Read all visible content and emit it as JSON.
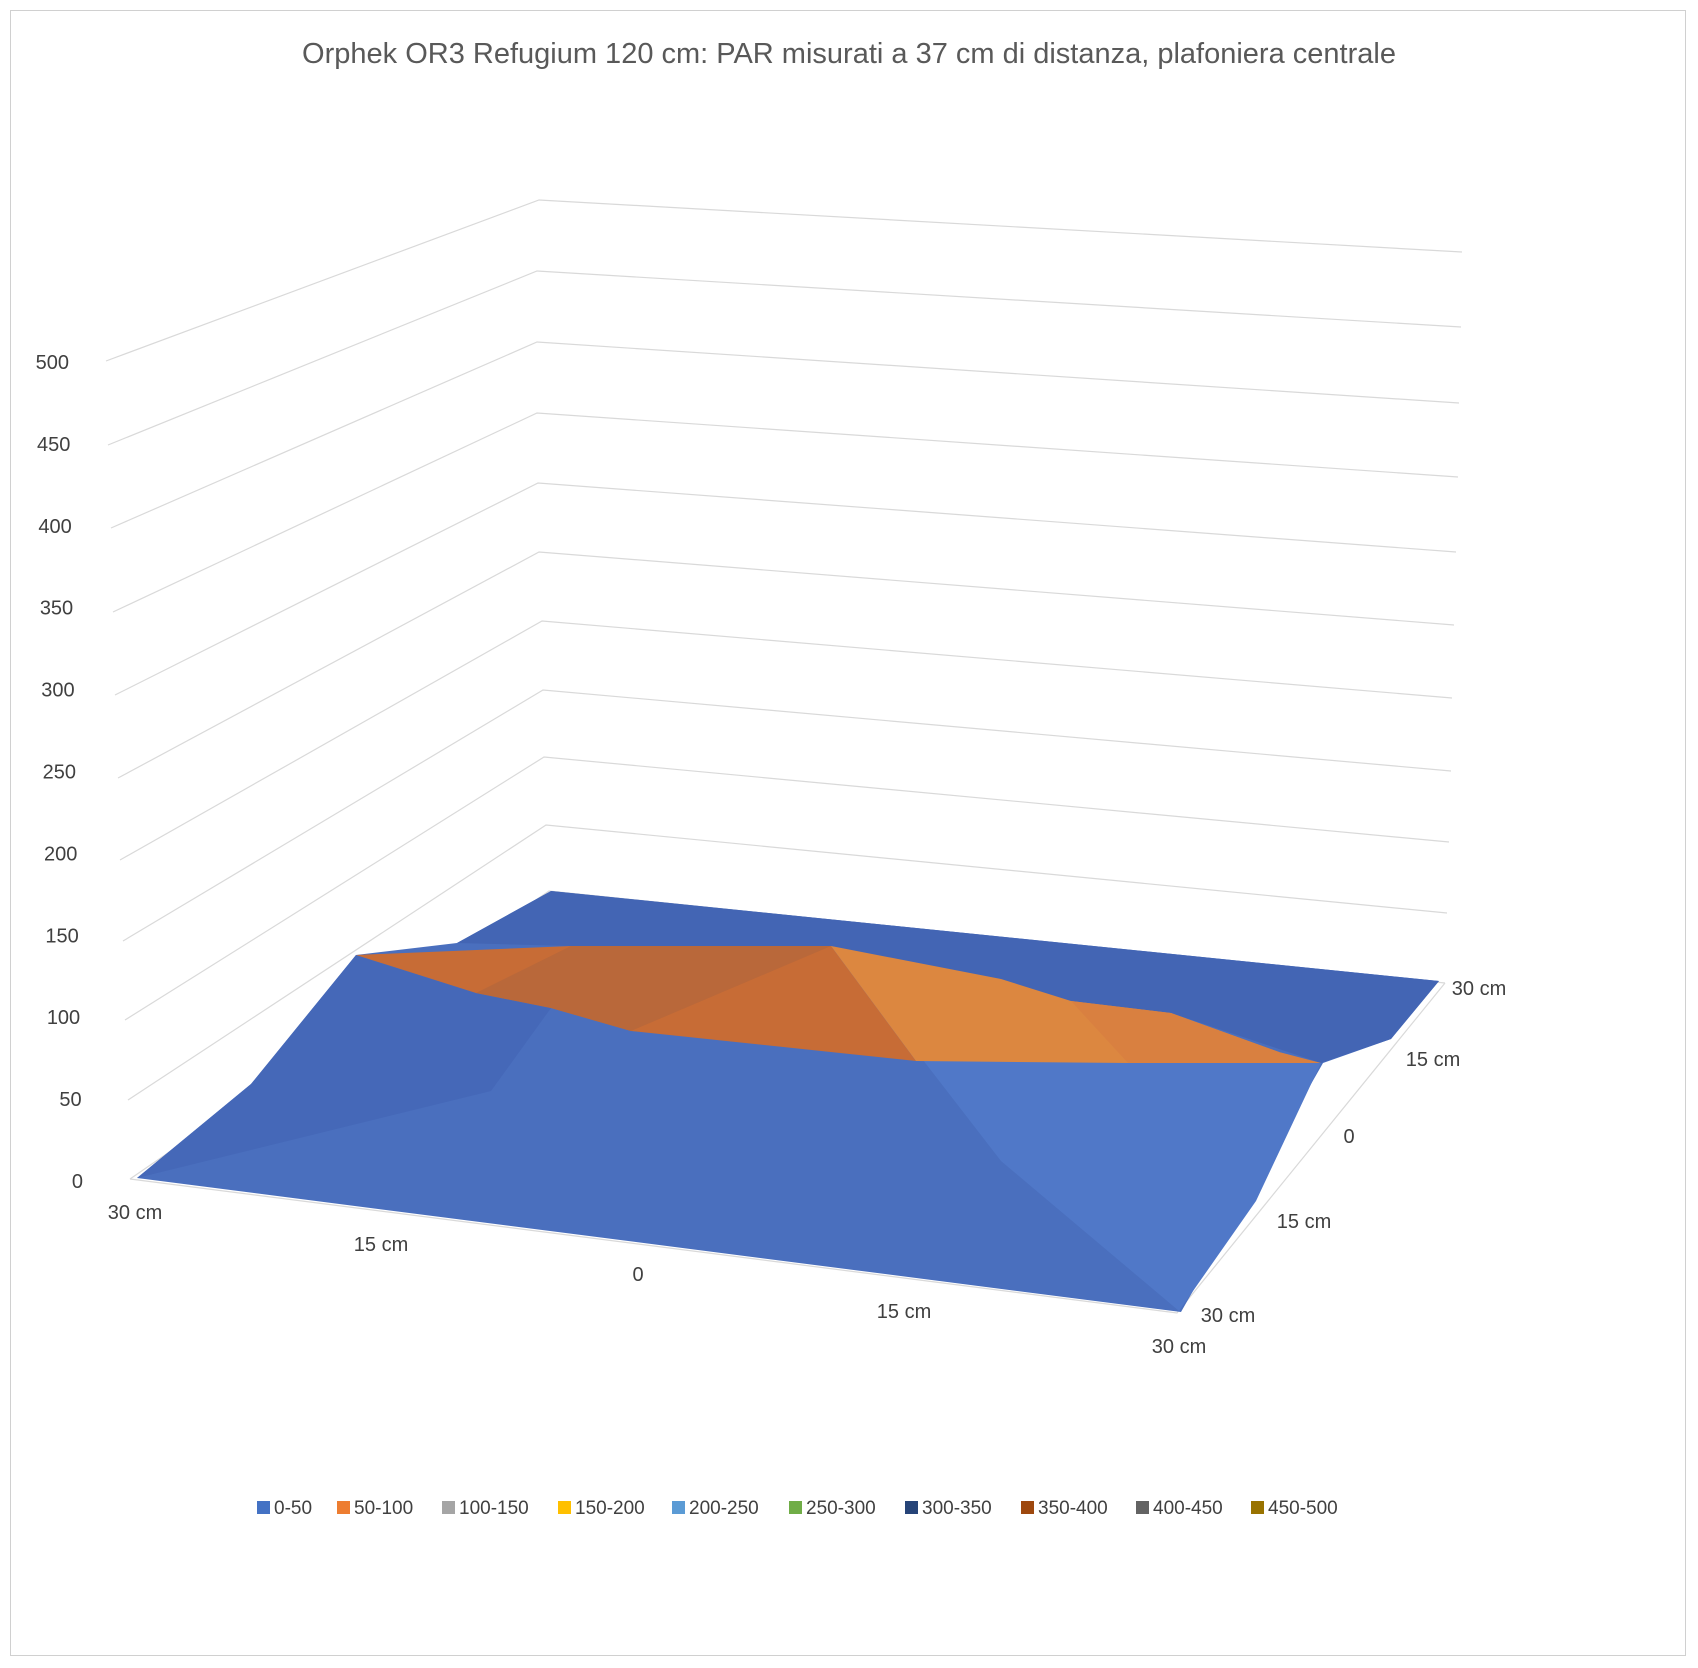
{
  "chart_data": {
    "type": "surface",
    "title": "Orphek OR3 Refugium 120 cm: PAR misurati a 37 cm di distanza, plafoniera centrale",
    "z_ticks": [
      "0",
      "50",
      "100",
      "150",
      "200",
      "250",
      "300",
      "350",
      "400",
      "450",
      "500"
    ],
    "zlim": [
      0,
      500
    ],
    "x_categories": [
      "30 cm",
      "15 cm",
      "0",
      "15 cm",
      "30 cm"
    ],
    "y_categories": [
      "30 cm",
      "15 cm",
      "0",
      "15 cm",
      "30 cm"
    ],
    "grid": true,
    "legend_position": "bottom",
    "legend": [
      {
        "label": "0-50",
        "color": "#4472C4"
      },
      {
        "label": "50-100",
        "color": "#ED7D31"
      },
      {
        "label": "100-150",
        "color": "#A5A5A5"
      },
      {
        "label": "150-200",
        "color": "#FFC000"
      },
      {
        "label": "200-250",
        "color": "#5B9BD5"
      },
      {
        "label": "250-300",
        "color": "#70AD47"
      },
      {
        "label": "300-350",
        "color": "#264478"
      },
      {
        "label": "350-400",
        "color": "#9E480E"
      },
      {
        "label": "400-450",
        "color": "#636363"
      },
      {
        "label": "450-500",
        "color": "#997300"
      }
    ],
    "values": [
      [
        0,
        40,
        55,
        45,
        35
      ],
      [
        50,
        105,
        95,
        70,
        45
      ],
      [
        95,
        110,
        115,
        105,
        60
      ],
      [
        75,
        120,
        115,
        100,
        50
      ],
      [
        0,
        40,
        75,
        55,
        40
      ]
    ]
  }
}
